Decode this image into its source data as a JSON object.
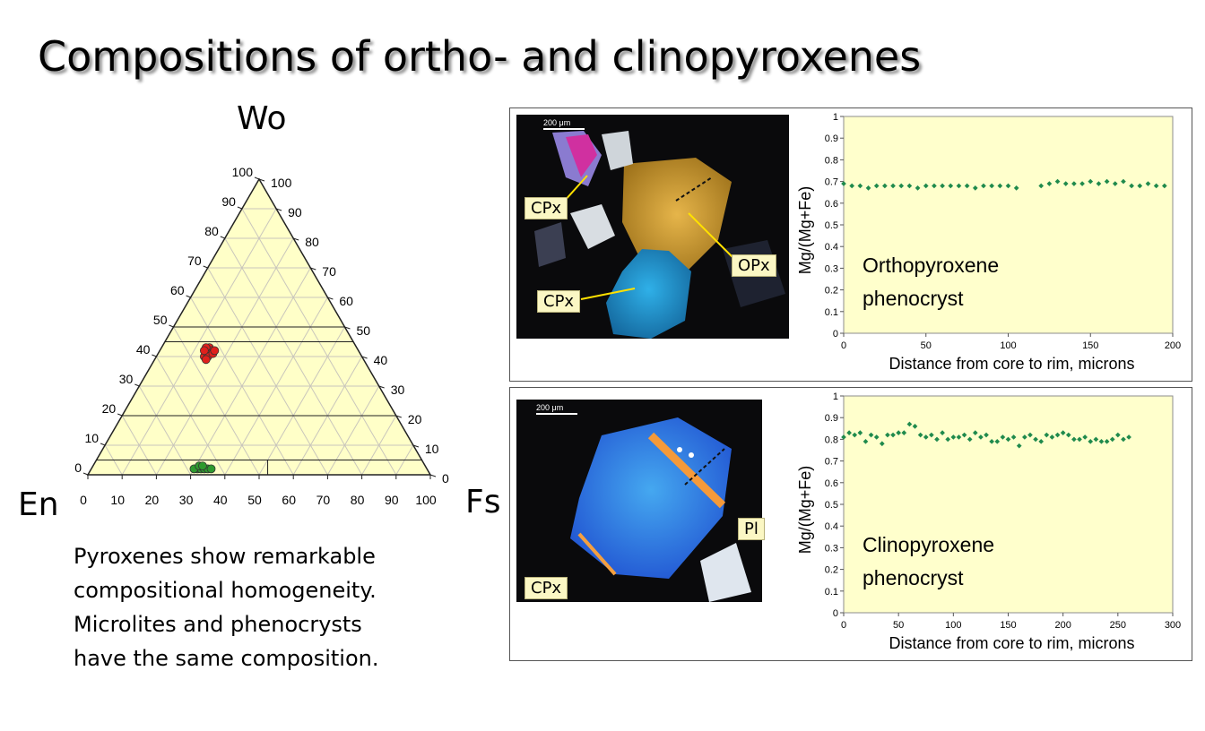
{
  "slide": {
    "title": "Compositions of ortho- and clinopyroxenes",
    "note": [
      "Pyroxenes show remarkable",
      "compositional homogeneity.",
      "Microlites and phenocrysts",
      "have the same composition."
    ]
  },
  "colors": {
    "ternary_fill": "#ffffc8",
    "cpx_points": "#e0201c",
    "opx_points": "#2e9a2e",
    "profile_points": "#1f8a4c",
    "plot_area": "#ffffcc",
    "callout": "#fbf7c4"
  },
  "ternary": {
    "apices": {
      "top": "Wo",
      "left": "En",
      "right": "Fs"
    },
    "left_ticks": [
      "0",
      "10",
      "20",
      "30",
      "40",
      "50",
      "60",
      "70",
      "80",
      "90",
      "100"
    ],
    "right_ticks": [
      "100",
      "90",
      "80",
      "70",
      "60",
      "50",
      "40",
      "30",
      "20",
      "10",
      "0"
    ],
    "bottom_ticks": [
      "0",
      "10",
      "20",
      "30",
      "40",
      "50",
      "60",
      "70",
      "80",
      "90",
      "100"
    ]
  },
  "photos": [
    {
      "scale_label": "200 μm",
      "labels": [
        "CPx",
        "OPx",
        "CPx"
      ]
    },
    {
      "scale_label": "200 μm",
      "labels": [
        "Pl",
        "CPx"
      ]
    }
  ],
  "chart_data": [
    {
      "type": "scatter",
      "subtype": "ternary",
      "components": [
        "Wo",
        "En",
        "Fs"
      ],
      "ticks": [
        0,
        10,
        20,
        30,
        40,
        50,
        60,
        70,
        80,
        90,
        100
      ],
      "grid": true,
      "reference_lines_wo": [
        50,
        45,
        20,
        5
      ],
      "series": [
        {
          "color": "#e0201c",
          "points": [
            [
              42,
              44,
              14
            ],
            [
              43,
              43,
              14
            ],
            [
              41,
              45,
              14
            ],
            [
              40,
              46,
              14
            ],
            [
              42,
              43,
              15
            ],
            [
              41,
              44,
              15
            ],
            [
              43,
              44,
              13
            ],
            [
              40,
              45,
              15
            ],
            [
              42,
              45,
              13
            ],
            [
              39,
              46,
              15
            ],
            [
              41,
              43,
              16
            ],
            [
              42,
              42,
              16
            ]
          ]
        },
        {
          "color": "#2e9a2e",
          "points": [
            [
              2,
              67,
              31
            ],
            [
              2,
              66,
              32
            ],
            [
              2,
              65,
              33
            ],
            [
              2,
              64,
              34
            ],
            [
              2,
              68,
              30
            ],
            [
              3,
              66,
              31
            ],
            [
              3,
              65,
              32
            ],
            [
              2,
              63,
              35
            ]
          ]
        }
      ]
    },
    {
      "type": "scatter",
      "title": "",
      "annotation": [
        "Orthopyroxene",
        "phenocryst"
      ],
      "xlabel": "Distance from core to rim, microns",
      "ylabel": "Mg/(Mg+Fe)",
      "xlim": [
        0,
        200
      ],
      "ylim": [
        0,
        1
      ],
      "xticks": [
        0,
        50,
        100,
        150,
        200
      ],
      "yticks": [
        0,
        0.1,
        0.2,
        0.3,
        0.4,
        0.5,
        0.6,
        0.7,
        0.8,
        0.9,
        1
      ],
      "ytick_labels": [
        "0",
        "0.1",
        "0.2",
        "0.3",
        "0.4",
        "0.5",
        "0.6",
        "0.7",
        "0.8",
        "0.9",
        "1"
      ],
      "grid": false,
      "x": [
        0,
        5,
        10,
        15,
        20,
        25,
        30,
        35,
        40,
        45,
        50,
        55,
        60,
        65,
        70,
        75,
        80,
        85,
        90,
        95,
        100,
        105,
        120,
        125,
        130,
        135,
        140,
        145,
        150,
        155,
        160,
        165,
        170,
        175,
        180,
        185,
        190,
        195
      ],
      "y": [
        0.69,
        0.68,
        0.68,
        0.67,
        0.68,
        0.68,
        0.68,
        0.68,
        0.68,
        0.67,
        0.68,
        0.68,
        0.68,
        0.68,
        0.68,
        0.68,
        0.67,
        0.68,
        0.68,
        0.68,
        0.68,
        0.67,
        0.68,
        0.69,
        0.7,
        0.69,
        0.69,
        0.69,
        0.7,
        0.69,
        0.7,
        0.69,
        0.7,
        0.68,
        0.68,
        0.69,
        0.68,
        0.68
      ]
    },
    {
      "type": "scatter",
      "title": "",
      "annotation": [
        "Clinopyroxene",
        "phenocryst"
      ],
      "xlabel": "Distance from core to rim, microns",
      "ylabel": "Mg/(Mg+Fe)",
      "xlim": [
        0,
        300
      ],
      "ylim": [
        0,
        1
      ],
      "xticks": [
        0,
        50,
        100,
        150,
        200,
        250,
        300
      ],
      "yticks": [
        0,
        0.1,
        0.2,
        0.3,
        0.4,
        0.5,
        0.6,
        0.7,
        0.8,
        0.9,
        1
      ],
      "ytick_labels": [
        "0",
        "0.1",
        "0.2",
        "0.3",
        "0.4",
        "0.5",
        "0.6",
        "0.7",
        "0.8",
        "0.9",
        "1"
      ],
      "grid": false,
      "x": [
        0,
        5,
        10,
        15,
        20,
        25,
        30,
        35,
        40,
        45,
        50,
        55,
        60,
        65,
        70,
        75,
        80,
        85,
        90,
        95,
        100,
        105,
        110,
        115,
        120,
        125,
        130,
        135,
        140,
        145,
        150,
        155,
        160,
        165,
        170,
        175,
        180,
        185,
        190,
        195,
        200,
        205,
        210,
        215,
        220,
        225,
        230,
        235,
        240,
        245,
        250,
        255,
        260
      ],
      "y": [
        0.81,
        0.83,
        0.82,
        0.83,
        0.79,
        0.82,
        0.81,
        0.78,
        0.82,
        0.82,
        0.83,
        0.83,
        0.87,
        0.86,
        0.82,
        0.81,
        0.82,
        0.8,
        0.83,
        0.8,
        0.81,
        0.81,
        0.82,
        0.8,
        0.83,
        0.81,
        0.82,
        0.79,
        0.79,
        0.81,
        0.8,
        0.81,
        0.77,
        0.81,
        0.82,
        0.8,
        0.79,
        0.82,
        0.81,
        0.82,
        0.83,
        0.82,
        0.8,
        0.8,
        0.81,
        0.79,
        0.8,
        0.79,
        0.79,
        0.8,
        0.82,
        0.8,
        0.81
      ]
    }
  ]
}
